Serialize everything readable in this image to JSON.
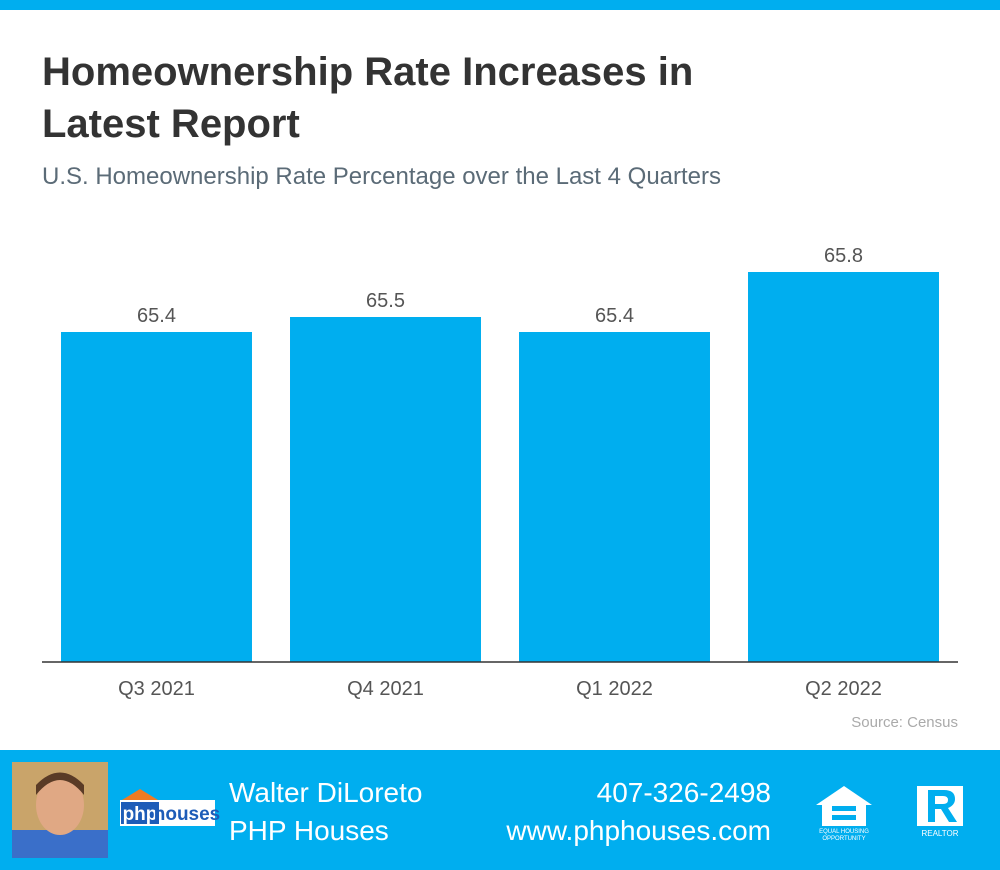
{
  "chart_data": {
    "type": "bar",
    "title": [
      "Homeownership Rate Increases in",
      "Latest Report"
    ],
    "subtitle": "U.S. Homeownership Rate Percentage over the Last 4 Quarters",
    "categories": [
      "Q3 2021",
      "Q4 2021",
      "Q1 2022",
      "Q2 2022"
    ],
    "values": [
      65.4,
      65.5,
      65.4,
      65.8
    ],
    "color": "#00aeef",
    "ylim": [
      63.2,
      66.0
    ],
    "source": "Source: Census"
  },
  "footer": {
    "name": "Walter DiLoreto",
    "company": "PHP Houses",
    "phone": "407-326-2498",
    "website": "www.phphouses.com",
    "logo": [
      "php",
      "houses"
    ],
    "equal_housing": [
      "EQUAL HOUSING",
      "OPPORTUNITY"
    ],
    "realtor": "REALTOR"
  }
}
